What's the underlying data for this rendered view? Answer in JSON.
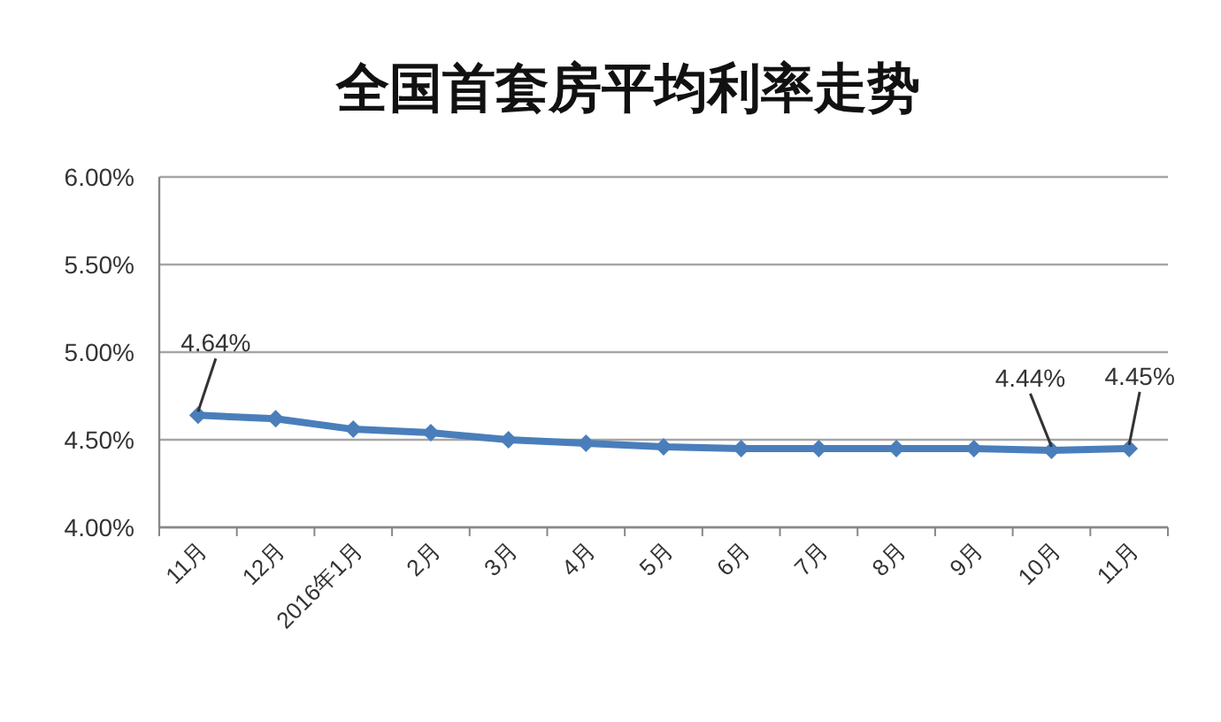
{
  "chart_data": {
    "type": "line",
    "title": "全国首套房平均利率走势",
    "categories": [
      "11月",
      "12月",
      "2016年1月",
      "2月",
      "3月",
      "4月",
      "5月",
      "6月",
      "7月",
      "8月",
      "9月",
      "10月",
      "11月"
    ],
    "series": [
      {
        "color": "#4a7ebb",
        "values": [
          4.64,
          4.62,
          4.56,
          4.54,
          4.5,
          4.48,
          4.46,
          4.45,
          4.45,
          4.45,
          4.45,
          4.44,
          4.45
        ],
        "value_labels": [
          "4.64%",
          null,
          null,
          null,
          null,
          null,
          null,
          null,
          null,
          null,
          null,
          "4.44%",
          "4.45%"
        ]
      }
    ],
    "ylim": [
      4.0,
      6.0
    ],
    "yticks": [
      {
        "value": 4.0,
        "label": "4.00%"
      },
      {
        "value": 4.5,
        "label": "4.50%"
      },
      {
        "value": 5.0,
        "label": "5.00%"
      },
      {
        "value": 5.5,
        "label": "5.50%"
      },
      {
        "value": 6.0,
        "label": "6.00%"
      }
    ],
    "grid": "y",
    "marker": "diamond",
    "line_style": "solid"
  }
}
